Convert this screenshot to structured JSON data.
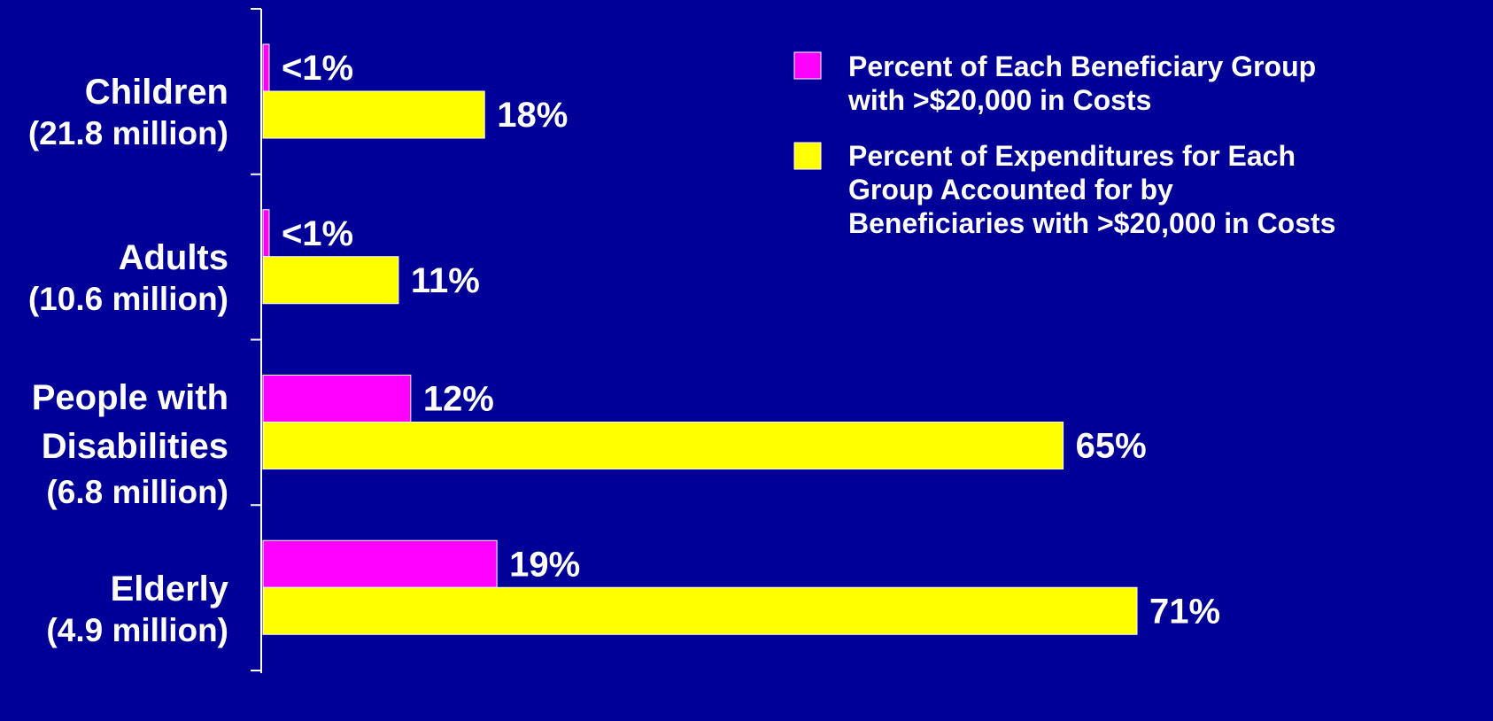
{
  "chart_data": {
    "type": "bar",
    "orientation": "horizontal",
    "categories": [
      {
        "lines": [
          "Children",
          "(21.8 million)"
        ]
      },
      {
        "lines": [
          "Adults",
          "(10.6 million)"
        ]
      },
      {
        "lines": [
          "People with",
          "Disabilities",
          "(6.8 million)"
        ]
      },
      {
        "lines": [
          "Elderly",
          "(4.9 million)"
        ]
      }
    ],
    "series": [
      {
        "name_lines": [
          "Percent of Each Beneficiary Group",
          "with >$20,000 in Costs"
        ],
        "color": "#ff00ff",
        "values": [
          0.5,
          0.5,
          12,
          19
        ],
        "labels": [
          "<1%",
          "<1%",
          "12%",
          "19%"
        ]
      },
      {
        "name_lines": [
          "Percent of Expenditures for Each",
          "Group Accounted for by",
          "Beneficiaries with >$20,000 in Costs"
        ],
        "color": "#ffff00",
        "values": [
          18,
          11,
          65,
          71
        ],
        "labels": [
          "18%",
          "11%",
          "65%",
          "71%"
        ]
      }
    ],
    "xlim": [
      0,
      80
    ],
    "grid": false,
    "legend_position": "top-right",
    "background_color": "#000099",
    "axis_color": "#ffffff",
    "label_color": "#ffffff"
  }
}
